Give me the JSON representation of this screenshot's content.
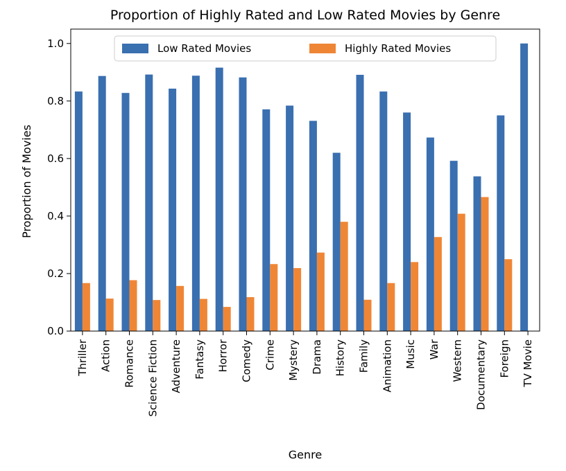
{
  "chart_data": {
    "type": "bar",
    "title": "Proportion of Highly Rated and Low Rated Movies by Genre",
    "xlabel": "Genre",
    "ylabel": "Proportion of Movies",
    "ylim": [
      0,
      1.05
    ],
    "yticks": [
      "0.0",
      "0.2",
      "0.4",
      "0.6",
      "0.8",
      "1.0"
    ],
    "legend_position": "top-center",
    "grid": false,
    "categories": [
      "Thriller",
      "Action",
      "Romance",
      "Science Fiction",
      "Adventure",
      "Fantasy",
      "Horror",
      "Comedy",
      "Crime",
      "Mystery",
      "Drama",
      "History",
      "Family",
      "Animation",
      "Music",
      "War",
      "Western",
      "Documentary",
      "Foreign",
      "TV Movie"
    ],
    "series": [
      {
        "name": "Low Rated Movies",
        "color": "#3a6fb0",
        "values": [
          0.833,
          0.887,
          0.828,
          0.892,
          0.843,
          0.888,
          0.916,
          0.882,
          0.771,
          0.784,
          0.731,
          0.62,
          0.891,
          0.833,
          0.76,
          0.673,
          0.592,
          0.538,
          0.75,
          1.0
        ]
      },
      {
        "name": "Highly Rated Movies",
        "color": "#ef8636",
        "values": [
          0.167,
          0.113,
          0.177,
          0.108,
          0.157,
          0.112,
          0.084,
          0.118,
          0.233,
          0.219,
          0.273,
          0.38,
          0.109,
          0.167,
          0.24,
          0.327,
          0.408,
          0.466,
          0.25,
          0.0
        ]
      }
    ]
  }
}
